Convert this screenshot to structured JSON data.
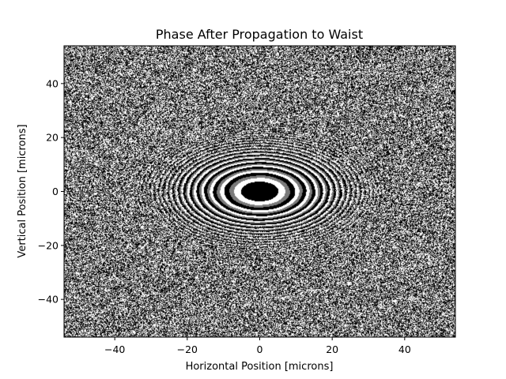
{
  "chart_data": {
    "type": "heatmap",
    "title": "Phase After Propagation to Waist",
    "xlabel": "Horizontal Position [microns]",
    "ylabel": "Vertical Position [microns]",
    "xlim": [
      -54,
      54
    ],
    "ylim": [
      -54,
      54
    ],
    "xticks": [
      -40,
      -20,
      0,
      20,
      40
    ],
    "yticks": [
      -40,
      -20,
      0,
      20,
      40
    ],
    "colormap": "gray",
    "pattern": "concentric elliptical phase-wrap fringes centered at (0, 0), becoming noisy toward the edges",
    "grid": false,
    "colors": {
      "fringe_dark": "#000000",
      "fringe_light": "#ffffff",
      "fringe_mid": "#7a7a7a"
    }
  }
}
